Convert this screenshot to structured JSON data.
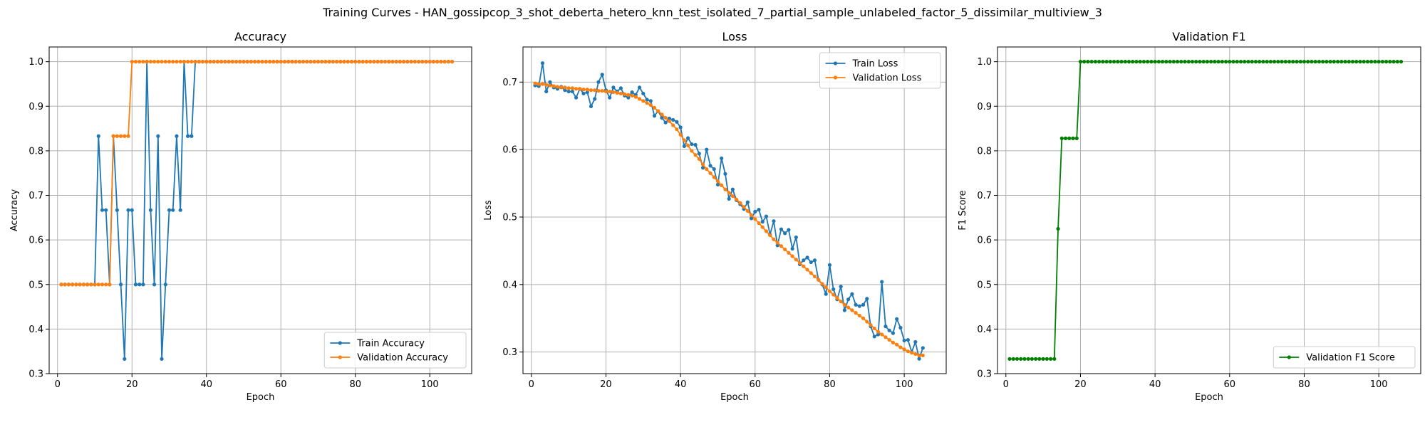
{
  "figure": {
    "title": "Training Curves - HAN_gossipcop_3_shot_deberta_hetero_knn_test_isolated_7_partial_sample_unlabeled_factor_5_dissimilar_multiview_3"
  },
  "colors": {
    "blue": "#1f77b4",
    "orange": "#ff7f0e",
    "green": "#008000",
    "grid": "#b0b0b0"
  },
  "chart_data": [
    {
      "type": "line",
      "title": "Accuracy",
      "xlabel": "Epoch",
      "ylabel": "Accuracy",
      "xlim": [
        -2.25,
        111.25
      ],
      "ylim": [
        0.3,
        1.033
      ],
      "xticks": [
        0,
        20,
        40,
        60,
        80,
        100
      ],
      "yticks": [
        0.3,
        0.4,
        0.5,
        0.6,
        0.7,
        0.8,
        0.9,
        1.0
      ],
      "ytick_labels": [
        "0.3",
        "0.4",
        "0.5",
        "0.6",
        "0.7",
        "0.8",
        "0.9",
        "1.0"
      ],
      "grid": true,
      "legend": "lower-right",
      "series": [
        {
          "name": "Train Accuracy",
          "color": "#1f77b4",
          "y": [
            0.5,
            0.5,
            0.5,
            0.5,
            0.5,
            0.5,
            0.5,
            0.5,
            0.5,
            0.5,
            0.833,
            0.667,
            0.667,
            0.5,
            0.833,
            0.667,
            0.5,
            0.333,
            0.667,
            0.667,
            0.5,
            0.5,
            0.5,
            1.0,
            0.667,
            0.5,
            0.833,
            0.333,
            0.5,
            0.667,
            0.667,
            0.833,
            0.667,
            1.0,
            0.833,
            0.833,
            1.0,
            1.0,
            1.0,
            1.0,
            1.0,
            1.0,
            1.0,
            1.0,
            1.0,
            1.0,
            1.0,
            1.0,
            1.0,
            1.0,
            1.0,
            1.0,
            1.0,
            1.0,
            1.0,
            1.0,
            1.0,
            1.0,
            1.0,
            1.0,
            1.0,
            1.0,
            1.0,
            1.0,
            1.0,
            1.0,
            1.0,
            1.0,
            1.0,
            1.0,
            1.0,
            1.0,
            1.0,
            1.0,
            1.0,
            1.0,
            1.0,
            1.0,
            1.0,
            1.0,
            1.0,
            1.0,
            1.0,
            1.0,
            1.0,
            1.0,
            1.0,
            1.0,
            1.0,
            1.0,
            1.0,
            1.0,
            1.0,
            1.0,
            1.0,
            1.0,
            1.0,
            1.0,
            1.0,
            1.0,
            1.0,
            1.0,
            1.0,
            1.0,
            1.0,
            1.0
          ]
        },
        {
          "name": "Validation Accuracy",
          "color": "#ff7f0e",
          "y": [
            0.5,
            0.5,
            0.5,
            0.5,
            0.5,
            0.5,
            0.5,
            0.5,
            0.5,
            0.5,
            0.5,
            0.5,
            0.5,
            0.5,
            0.833,
            0.833,
            0.833,
            0.833,
            0.833,
            1.0,
            1.0,
            1.0,
            1.0,
            1.0,
            1.0,
            1.0,
            1.0,
            1.0,
            1.0,
            1.0,
            1.0,
            1.0,
            1.0,
            1.0,
            1.0,
            1.0,
            1.0,
            1.0,
            1.0,
            1.0,
            1.0,
            1.0,
            1.0,
            1.0,
            1.0,
            1.0,
            1.0,
            1.0,
            1.0,
            1.0,
            1.0,
            1.0,
            1.0,
            1.0,
            1.0,
            1.0,
            1.0,
            1.0,
            1.0,
            1.0,
            1.0,
            1.0,
            1.0,
            1.0,
            1.0,
            1.0,
            1.0,
            1.0,
            1.0,
            1.0,
            1.0,
            1.0,
            1.0,
            1.0,
            1.0,
            1.0,
            1.0,
            1.0,
            1.0,
            1.0,
            1.0,
            1.0,
            1.0,
            1.0,
            1.0,
            1.0,
            1.0,
            1.0,
            1.0,
            1.0,
            1.0,
            1.0,
            1.0,
            1.0,
            1.0,
            1.0,
            1.0,
            1.0,
            1.0,
            1.0,
            1.0,
            1.0,
            1.0,
            1.0,
            1.0,
            1.0
          ]
        }
      ]
    },
    {
      "type": "line",
      "title": "Loss",
      "xlabel": "Epoch",
      "ylabel": "Loss",
      "xlim": [
        -2.25,
        111.25
      ],
      "ylim": [
        0.268,
        0.752
      ],
      "xticks": [
        0,
        20,
        40,
        60,
        80,
        100
      ],
      "yticks": [
        0.3,
        0.4,
        0.5,
        0.6,
        0.7
      ],
      "ytick_labels": [
        "0.3",
        "0.4",
        "0.5",
        "0.6",
        "0.7"
      ],
      "grid": true,
      "legend": "top-right",
      "series": [
        {
          "name": "Train Loss",
          "color": "#1f77b4",
          "y": [
            0.695,
            0.694,
            0.728,
            0.686,
            0.7,
            0.692,
            0.69,
            0.693,
            0.688,
            0.686,
            0.686,
            0.677,
            0.69,
            0.683,
            0.685,
            0.664,
            0.675,
            0.7,
            0.711,
            0.688,
            0.677,
            0.692,
            0.686,
            0.691,
            0.68,
            0.677,
            0.685,
            0.681,
            0.692,
            0.683,
            0.674,
            0.672,
            0.65,
            0.657,
            0.647,
            0.64,
            0.646,
            0.644,
            0.641,
            0.633,
            0.605,
            0.617,
            0.608,
            0.607,
            0.594,
            0.573,
            0.6,
            0.576,
            0.571,
            0.548,
            0.587,
            0.564,
            0.527,
            0.541,
            0.525,
            0.519,
            0.512,
            0.522,
            0.498,
            0.508,
            0.511,
            0.493,
            0.501,
            0.474,
            0.494,
            0.458,
            0.482,
            0.476,
            0.481,
            0.453,
            0.47,
            0.43,
            0.436,
            0.44,
            0.433,
            0.436,
            0.407,
            0.4,
            0.386,
            0.429,
            0.393,
            0.378,
            0.397,
            0.362,
            0.378,
            0.386,
            0.37,
            0.368,
            0.37,
            0.379,
            0.338,
            0.323,
            0.326,
            0.404,
            0.338,
            0.332,
            0.328,
            0.349,
            0.336,
            0.317,
            0.318,
            0.3,
            0.315,
            0.29,
            0.306
          ]
        },
        {
          "name": "Validation Loss",
          "color": "#ff7f0e",
          "y": [
            0.698,
            0.697,
            0.697,
            0.696,
            0.695,
            0.694,
            0.693,
            0.692,
            0.692,
            0.691,
            0.691,
            0.69,
            0.69,
            0.689,
            0.689,
            0.688,
            0.688,
            0.687,
            0.687,
            0.686,
            0.686,
            0.685,
            0.684,
            0.683,
            0.682,
            0.681,
            0.68,
            0.678,
            0.675,
            0.672,
            0.669,
            0.666,
            0.662,
            0.657,
            0.652,
            0.647,
            0.642,
            0.636,
            0.63,
            0.622,
            0.614,
            0.606,
            0.598,
            0.592,
            0.586,
            0.578,
            0.571,
            0.565,
            0.559,
            0.553,
            0.547,
            0.541,
            0.536,
            0.531,
            0.526,
            0.521,
            0.515,
            0.509,
            0.503,
            0.497,
            0.491,
            0.485,
            0.479,
            0.473,
            0.467,
            0.462,
            0.457,
            0.452,
            0.447,
            0.442,
            0.437,
            0.432,
            0.427,
            0.422,
            0.417,
            0.412,
            0.407,
            0.401,
            0.396,
            0.39,
            0.385,
            0.38,
            0.375,
            0.37,
            0.366,
            0.362,
            0.358,
            0.354,
            0.35,
            0.345,
            0.34,
            0.335,
            0.33,
            0.326,
            0.322,
            0.318,
            0.314,
            0.311,
            0.307,
            0.304,
            0.301,
            0.299,
            0.297,
            0.295,
            0.295
          ]
        }
      ]
    },
    {
      "type": "line",
      "title": "Validation F1",
      "xlabel": "Epoch",
      "ylabel": "F1 Score",
      "xlim": [
        -2.25,
        111.25
      ],
      "ylim": [
        0.3,
        1.033
      ],
      "xticks": [
        0,
        20,
        40,
        60,
        80,
        100
      ],
      "yticks": [
        0.3,
        0.4,
        0.5,
        0.6,
        0.7,
        0.8,
        0.9,
        1.0
      ],
      "ytick_labels": [
        "0.3",
        "0.4",
        "0.5",
        "0.6",
        "0.7",
        "0.8",
        "0.9",
        "1.0"
      ],
      "grid": true,
      "legend": "lower-right",
      "series": [
        {
          "name": "Validation F1 Score",
          "color": "#008000",
          "y": [
            0.333,
            0.333,
            0.333,
            0.333,
            0.333,
            0.333,
            0.333,
            0.333,
            0.333,
            0.333,
            0.333,
            0.333,
            0.333,
            0.625,
            0.828,
            0.828,
            0.828,
            0.828,
            0.828,
            1.0,
            1.0,
            1.0,
            1.0,
            1.0,
            1.0,
            1.0,
            1.0,
            1.0,
            1.0,
            1.0,
            1.0,
            1.0,
            1.0,
            1.0,
            1.0,
            1.0,
            1.0,
            1.0,
            1.0,
            1.0,
            1.0,
            1.0,
            1.0,
            1.0,
            1.0,
            1.0,
            1.0,
            1.0,
            1.0,
            1.0,
            1.0,
            1.0,
            1.0,
            1.0,
            1.0,
            1.0,
            1.0,
            1.0,
            1.0,
            1.0,
            1.0,
            1.0,
            1.0,
            1.0,
            1.0,
            1.0,
            1.0,
            1.0,
            1.0,
            1.0,
            1.0,
            1.0,
            1.0,
            1.0,
            1.0,
            1.0,
            1.0,
            1.0,
            1.0,
            1.0,
            1.0,
            1.0,
            1.0,
            1.0,
            1.0,
            1.0,
            1.0,
            1.0,
            1.0,
            1.0,
            1.0,
            1.0,
            1.0,
            1.0,
            1.0,
            1.0,
            1.0,
            1.0,
            1.0,
            1.0,
            1.0,
            1.0,
            1.0,
            1.0,
            1.0,
            1.0
          ]
        }
      ]
    }
  ]
}
